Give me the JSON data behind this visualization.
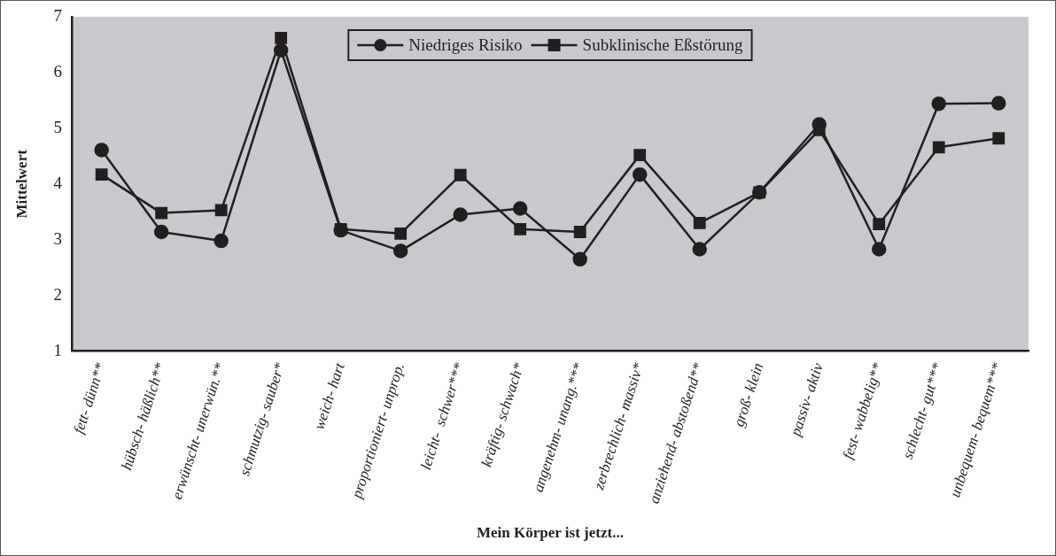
{
  "chart_data": {
    "type": "line",
    "xlabel": "Mein Körper ist jetzt...",
    "ylabel": "Mittelwert",
    "categories": [
      "fett- dünn**",
      "hübsch- häßlich**",
      "erwünscht- unerwün.**",
      "schmutzig- sauber*",
      "weich- hart",
      "proportioniert- unprop.",
      "leicht-  schwer***",
      "kräftig- schwach*",
      "angenehm- unang.***",
      "zerbrechlich- massiv*",
      "anziehend- abstoßend**",
      "groß- klein",
      "passiv- aktiv",
      "fest- wabbelig**",
      "schlecht- gut***",
      "unbequem- bequem***"
    ],
    "series": [
      {
        "name": "Niedriges Risiko",
        "color": "#231f20",
        "marker": "circle",
        "values": [
          4.61,
          3.14,
          2.98,
          6.4,
          3.17,
          2.8,
          3.45,
          3.56,
          2.65,
          4.17,
          2.83,
          3.85,
          5.07,
          2.83,
          5.44,
          5.45
        ]
      },
      {
        "name": "Subklinische Eßstörung",
        "color": "#231f20",
        "marker": "square",
        "values": [
          4.17,
          3.48,
          3.53,
          6.62,
          3.19,
          3.11,
          4.16,
          3.19,
          3.14,
          4.52,
          3.3,
          3.85,
          4.97,
          3.28,
          4.66,
          4.82
        ]
      }
    ],
    "ylim": [
      1,
      7
    ],
    "yticks": [
      1,
      2,
      3,
      4,
      5,
      6,
      7
    ],
    "grid": false,
    "legend": "top",
    "line_style": "solid"
  }
}
